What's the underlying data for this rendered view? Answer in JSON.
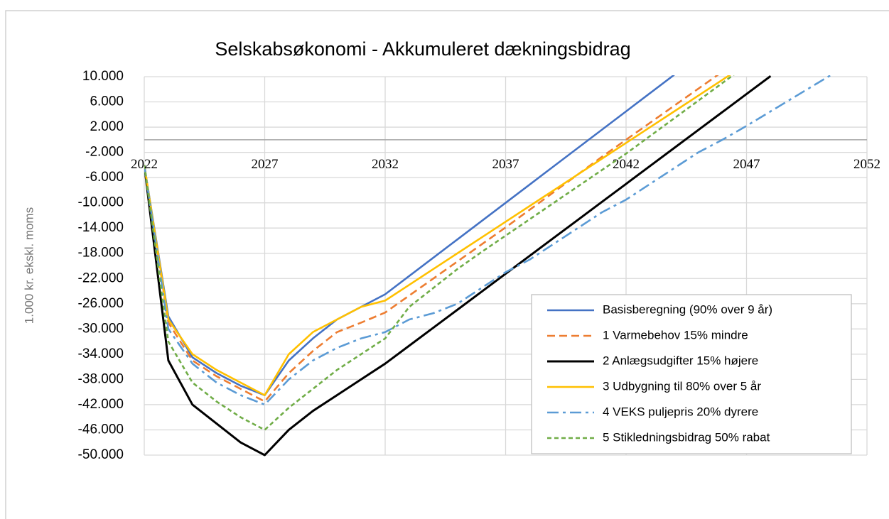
{
  "chart_data": {
    "type": "line",
    "title": "Selskabsøkonomi  - Akkumuleret dækningsbidrag",
    "ylabel": "1.000 kr. ekskl. moms",
    "x": [
      2022,
      2023,
      2024,
      2025,
      2026,
      2027,
      2028,
      2029,
      2030,
      2031,
      2032,
      2033,
      2034,
      2035,
      2036,
      2037,
      2038,
      2039,
      2040,
      2041,
      2042,
      2043,
      2044,
      2045,
      2046,
      2047,
      2048,
      2049,
      2050,
      2051,
      2052
    ],
    "xlim": [
      2022,
      2052
    ],
    "xticks": [
      2022,
      2027,
      2032,
      2037,
      2042,
      2047,
      2052
    ],
    "ylim": [
      -50000,
      10000
    ],
    "yticks": [
      {
        "value": -50000,
        "label": "-50.000"
      },
      {
        "value": -46000,
        "label": "-46.000"
      },
      {
        "value": -42000,
        "label": "-42.000"
      },
      {
        "value": -38000,
        "label": "-38.000"
      },
      {
        "value": -34000,
        "label": "-34.000"
      },
      {
        "value": -30000,
        "label": "-30.000"
      },
      {
        "value": -26000,
        "label": "-26.000"
      },
      {
        "value": -22000,
        "label": "-22.000"
      },
      {
        "value": -18000,
        "label": "-18.000"
      },
      {
        "value": -14000,
        "label": "-14.000"
      },
      {
        "value": -10000,
        "label": "-10.000"
      },
      {
        "value": -6000,
        "label": "-6.000"
      },
      {
        "value": -2000,
        "label": "-2.000"
      },
      {
        "value": 2000,
        "label": "2.000"
      },
      {
        "value": 6000,
        "label": "6.000"
      },
      {
        "value": 10000,
        "label": "10.000"
      }
    ],
    "grid": true,
    "legend": "lower right",
    "series": [
      {
        "name": "Basisberegning (90% over 9 år)",
        "color": "#4472c4",
        "dash": "solid",
        "values": [
          -4000,
          -28000,
          -34500,
          -37000,
          -39000,
          -40500,
          -35000,
          -31500,
          -28500,
          -26500,
          -24500,
          -21600,
          -18700,
          -15800,
          -12900,
          -10000,
          -7100,
          -4200,
          -1300,
          1600,
          4500,
          7400,
          10300,
          null,
          null,
          null,
          null,
          null,
          null,
          null,
          null
        ]
      },
      {
        "name": "1 Varmebehov 15% mindre",
        "color": "#ed7d31",
        "dash": "dash",
        "values": [
          -4000,
          -29000,
          -35000,
          -37500,
          -39500,
          -41500,
          -37000,
          -33500,
          -30500,
          -29000,
          -27400,
          -24700,
          -22000,
          -19300,
          -16600,
          -13900,
          -11100,
          -8300,
          -5500,
          -2700,
          0,
          2700,
          5400,
          8100,
          10800,
          null,
          null,
          null,
          null,
          null,
          null
        ]
      },
      {
        "name": "2 Anlægsudgifter 15% højere",
        "color": "#000000",
        "dash": "solid",
        "values": [
          -4000,
          -35000,
          -42000,
          -45000,
          -48000,
          -50000,
          -46000,
          -43000,
          -40500,
          -38000,
          -35500,
          -32650,
          -29800,
          -26950,
          -24100,
          -21250,
          -18400,
          -15550,
          -12700,
          -9850,
          -7000,
          -4150,
          -1300,
          1550,
          4400,
          7250,
          10100,
          null,
          null,
          null,
          null
        ]
      },
      {
        "name": "3 Udbygning til 80% over 5 år",
        "color": "#ffc000",
        "dash": "solid",
        "values": [
          -4000,
          -28500,
          -34000,
          -36500,
          -38500,
          -40500,
          -34000,
          -30500,
          -28500,
          -26500,
          -25500,
          -23000,
          -20500,
          -18000,
          -15500,
          -13000,
          -10500,
          -8000,
          -5500,
          -3000,
          -500,
          2000,
          4500,
          7000,
          9500,
          12000,
          null,
          null,
          null,
          null,
          null
        ]
      },
      {
        "name": "4 VEKS puljepris 20% dyrere",
        "color": "#5b9bd5",
        "dash": "dashdot",
        "values": [
          -4000,
          -30000,
          -35500,
          -38500,
          -40500,
          -42000,
          -38000,
          -35000,
          -33000,
          -31500,
          -30500,
          -28500,
          -27500,
          -26000,
          -23500,
          -21000,
          -19000,
          -16500,
          -14000,
          -11500,
          -9500,
          -7000,
          -4500,
          -2000,
          0,
          2200,
          4500,
          6800,
          9100,
          11400,
          null
        ]
      },
      {
        "name": "5 Stikledningsbidrag 50% rabat",
        "color": "#70ad47",
        "dash": "dot",
        "values": [
          -4000,
          -32000,
          -38500,
          -41500,
          -44000,
          -46000,
          -42500,
          -39500,
          -36500,
          -34000,
          -31500,
          -26500,
          -23500,
          -20500,
          -17800,
          -15200,
          -12600,
          -10000,
          -7400,
          -4800,
          -2200,
          600,
          3400,
          6200,
          9000,
          11800,
          null,
          null,
          null,
          null,
          null
        ]
      }
    ]
  }
}
